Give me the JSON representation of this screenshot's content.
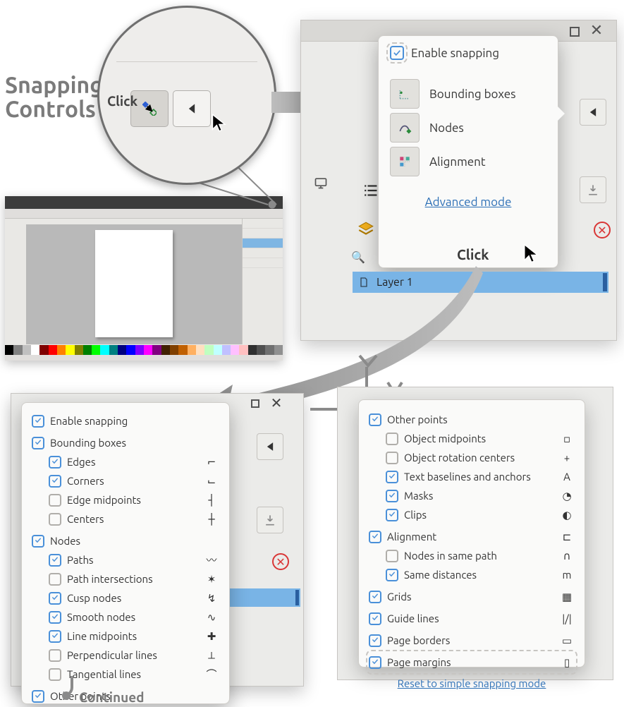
{
  "title_line1": "Snapping",
  "title_line2": "Controls",
  "circle_click": "Click",
  "simple": {
    "enable": "Enable snapping",
    "rows": [
      {
        "label": "Bounding boxes"
      },
      {
        "label": "Nodes"
      },
      {
        "label": "Alignment"
      }
    ],
    "advanced": "Advanced mode",
    "click": "Click"
  },
  "layer": "Layer 1",
  "adv1": {
    "enable": "Enable snapping",
    "groups": [
      {
        "label": "Bounding boxes",
        "checked": true,
        "sub": [
          {
            "label": "Edges",
            "checked": true,
            "icon": "⌐"
          },
          {
            "label": "Corners",
            "checked": true,
            "icon": "⌙"
          },
          {
            "label": "Edge midpoints",
            "checked": false,
            "icon": "┤"
          },
          {
            "label": "Centers",
            "checked": false,
            "icon": "┼"
          }
        ]
      },
      {
        "label": "Nodes",
        "checked": true,
        "sub": [
          {
            "label": "Paths",
            "checked": true,
            "icon": "〰"
          },
          {
            "label": "Path intersections",
            "checked": false,
            "icon": "✶"
          },
          {
            "label": "Cusp nodes",
            "checked": true,
            "icon": "↯"
          },
          {
            "label": "Smooth nodes",
            "checked": true,
            "icon": "∿"
          },
          {
            "label": "Line midpoints",
            "checked": true,
            "icon": "✚"
          },
          {
            "label": "Perpendicular lines",
            "checked": false,
            "icon": "⟂"
          },
          {
            "label": "Tangential lines",
            "checked": false,
            "icon": "⌒"
          }
        ]
      },
      {
        "label": "Other points",
        "checked": true,
        "faded": true,
        "sub": []
      }
    ],
    "continued": "Continued"
  },
  "adv2": {
    "groups": [
      {
        "label": "Other points",
        "checked": true,
        "sub": [
          {
            "label": "Object midpoints",
            "checked": false,
            "icon": "▫"
          },
          {
            "label": "Object rotation centers",
            "checked": false,
            "icon": "+"
          },
          {
            "label": "Text baselines and anchors",
            "checked": true,
            "icon": "A"
          },
          {
            "label": "Masks",
            "checked": true,
            "icon": "◔"
          },
          {
            "label": "Clips",
            "checked": true,
            "icon": "◐"
          }
        ]
      },
      {
        "label": "Alignment",
        "checked": true,
        "icon": "⊏",
        "sub": [
          {
            "label": "Nodes in same path",
            "checked": false,
            "icon": "∩"
          },
          {
            "label": "Same distances",
            "checked": true,
            "icon": "m"
          }
        ]
      },
      {
        "label": "Grids",
        "checked": true,
        "icon": "▦",
        "sub": []
      },
      {
        "label": "Guide lines",
        "checked": true,
        "icon": "|/|",
        "sub": []
      },
      {
        "label": "Page borders",
        "checked": true,
        "icon": "▭",
        "sub": []
      },
      {
        "label": "Page margins",
        "checked": true,
        "icon": "▯",
        "sub": [],
        "dashed": true
      }
    ],
    "reset": "Reset to simple snapping mode"
  },
  "swatches": [
    "#000000",
    "#808080",
    "#c0c0c0",
    "#ffffff",
    "#800000",
    "#ff0000",
    "#ff8000",
    "#ffff00",
    "#808000",
    "#008000",
    "#00ff00",
    "#00ffff",
    "#008080",
    "#000080",
    "#0000ff",
    "#8000ff",
    "#ff00ff",
    "#800080",
    "#402000",
    "#804000",
    "#c06000",
    "#ffb060",
    "#ffe0c0",
    "#c0ffc0",
    "#c0ffff",
    "#c0c0ff",
    "#ffc0ff",
    "#ffc0c0",
    "#303030",
    "#505050",
    "#707070",
    "#909090"
  ],
  "colors": {
    "accent": "#4a90d9",
    "link": "#2c6fb6",
    "select": "#79b4e6",
    "danger": "#d93636"
  }
}
